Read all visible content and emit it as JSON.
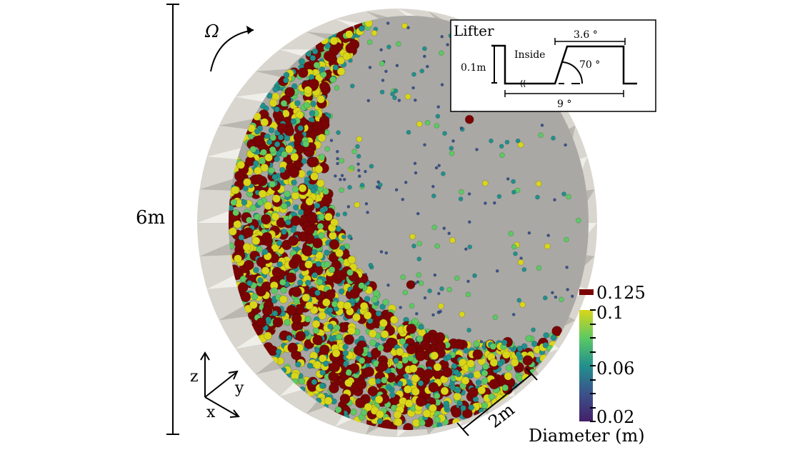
{
  "figure": {
    "rotation_label": "Ω",
    "height_label": "6m",
    "length_label": "2m",
    "axes": {
      "z": "z",
      "y": "y",
      "x": "x"
    }
  },
  "inset": {
    "title": "Lifter",
    "height": "0.1m",
    "inside": "Inside",
    "top_width": "3.6 °",
    "angle": "70 °",
    "spacing": "9 °"
  },
  "colorbar": {
    "title": "Diameter (m)",
    "special_value": "0.125",
    "special_color": "#7a0404",
    "ticks": [
      "0.1",
      "0.06",
      "0.02"
    ],
    "range": [
      0.02,
      0.1
    ],
    "colormap": [
      "#440154",
      "#3b528b",
      "#21908d",
      "#5dc963",
      "#d9d61a"
    ]
  }
}
